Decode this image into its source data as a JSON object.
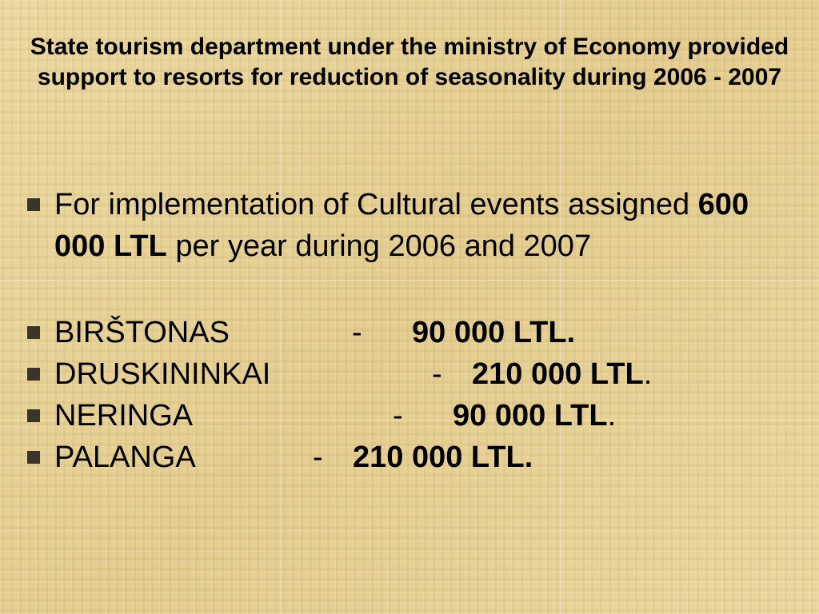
{
  "title": "State tourism department under the ministry of Economy provided support to resorts for reduction of seasonality during  2006 - 2007",
  "intro": {
    "text_before": "For implementation of Cultural events assigned ",
    "amount": "600 000 LTL",
    "text_after": " per year during 2006 and 2007"
  },
  "resorts": [
    {
      "name": "BIRŠTONAS",
      "dash": "-",
      "amount": "90 000 LTL.",
      "suffix": ""
    },
    {
      "name": "DRUSKININKAI",
      "dash": "-",
      "amount": "210 000 LTL",
      "suffix": "."
    },
    {
      "name": "NERINGA",
      "dash": "-",
      "amount": "90 000 LTL",
      "suffix": "."
    },
    {
      "name": "PALANGA",
      "dash": "-",
      "amount": "210 000 LTL.",
      "suffix": ""
    }
  ],
  "colors": {
    "background": "#e8d49a",
    "bullet": "#3b3428",
    "text": "#000000"
  }
}
